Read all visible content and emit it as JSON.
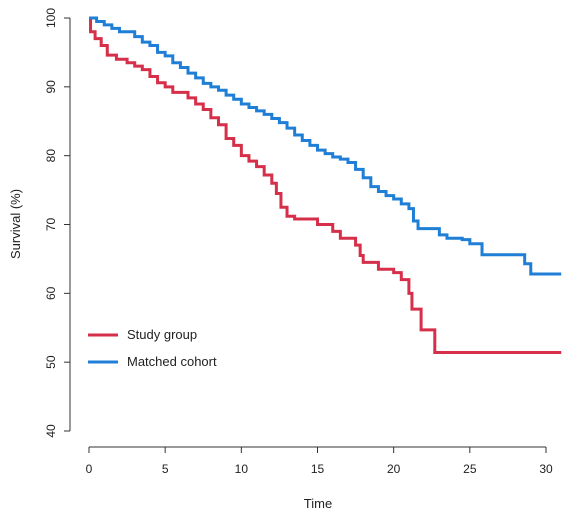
{
  "chart_data": {
    "type": "line",
    "title": "",
    "xlabel": "Time",
    "ylabel": "Survival (%)",
    "xlim": [
      0,
      31
    ],
    "ylim": [
      40,
      100
    ],
    "x_ticks": [
      0,
      5,
      10,
      15,
      20,
      25,
      30
    ],
    "y_ticks": [
      40,
      50,
      60,
      70,
      80,
      90,
      100
    ],
    "legend_position": "bottom-left",
    "grid": false,
    "series": [
      {
        "name": "Study group",
        "color": "#d62f4a",
        "step": true,
        "points": [
          [
            0,
            100
          ],
          [
            0.1,
            98
          ],
          [
            0.4,
            97
          ],
          [
            0.8,
            96
          ],
          [
            1.2,
            94.6
          ],
          [
            1.8,
            94
          ],
          [
            2.5,
            93.5
          ],
          [
            3.0,
            93
          ],
          [
            3.5,
            92.5
          ],
          [
            4.0,
            91.5
          ],
          [
            4.5,
            90.6
          ],
          [
            5.0,
            90
          ],
          [
            5.5,
            89.2
          ],
          [
            6.5,
            88.4
          ],
          [
            7.0,
            87.5
          ],
          [
            7.5,
            86.7
          ],
          [
            8.0,
            85.5
          ],
          [
            8.5,
            84.5
          ],
          [
            9.0,
            82.5
          ],
          [
            9.5,
            81.5
          ],
          [
            10.0,
            80
          ],
          [
            10.5,
            79.2
          ],
          [
            11.0,
            78.4
          ],
          [
            11.5,
            77.2
          ],
          [
            12.0,
            76
          ],
          [
            12.3,
            74.5
          ],
          [
            12.6,
            72.5
          ],
          [
            13.0,
            71.2
          ],
          [
            13.5,
            70.8
          ],
          [
            15.0,
            70
          ],
          [
            16.0,
            69
          ],
          [
            16.5,
            68
          ],
          [
            17.5,
            67
          ],
          [
            17.8,
            65.5
          ],
          [
            18.0,
            64.5
          ],
          [
            19.0,
            63.5
          ],
          [
            20.0,
            63
          ],
          [
            20.5,
            62
          ],
          [
            21.0,
            60
          ],
          [
            21.2,
            57.7
          ],
          [
            21.8,
            54.7
          ],
          [
            22.7,
            51.4
          ],
          [
            31,
            51.4
          ]
        ]
      },
      {
        "name": "Matched cohort",
        "color": "#1f7fd6",
        "step": true,
        "points": [
          [
            0,
            100
          ],
          [
            0.5,
            99.5
          ],
          [
            1.0,
            99
          ],
          [
            1.5,
            98.5
          ],
          [
            2.0,
            98
          ],
          [
            3.0,
            97.3
          ],
          [
            3.5,
            96.5
          ],
          [
            4.0,
            96
          ],
          [
            4.5,
            95
          ],
          [
            5.0,
            94.5
          ],
          [
            5.5,
            93.5
          ],
          [
            6.0,
            92.8
          ],
          [
            6.5,
            92
          ],
          [
            7.0,
            91.3
          ],
          [
            7.5,
            90.5
          ],
          [
            8.0,
            90
          ],
          [
            8.5,
            89.5
          ],
          [
            9.0,
            88.8
          ],
          [
            9.5,
            88.2
          ],
          [
            10.0,
            87.5
          ],
          [
            10.5,
            87
          ],
          [
            11.0,
            86.5
          ],
          [
            11.5,
            86
          ],
          [
            12.0,
            85.4
          ],
          [
            12.5,
            84.8
          ],
          [
            13.0,
            84
          ],
          [
            13.5,
            83
          ],
          [
            14.0,
            82.2
          ],
          [
            14.5,
            81.5
          ],
          [
            15.0,
            80.8
          ],
          [
            15.5,
            80.3
          ],
          [
            16.0,
            79.8
          ],
          [
            16.5,
            79.5
          ],
          [
            17.0,
            79
          ],
          [
            17.5,
            78
          ],
          [
            18.0,
            76.8
          ],
          [
            18.5,
            75.5
          ],
          [
            19.0,
            74.8
          ],
          [
            19.5,
            74.2
          ],
          [
            20.0,
            73.7
          ],
          [
            20.5,
            73
          ],
          [
            21.0,
            72.3
          ],
          [
            21.3,
            70.5
          ],
          [
            21.6,
            69.4
          ],
          [
            23.0,
            68.5
          ],
          [
            23.5,
            68
          ],
          [
            24.5,
            67.8
          ],
          [
            25.0,
            67.2
          ],
          [
            25.8,
            65.6
          ],
          [
            28.6,
            64.3
          ],
          [
            29.0,
            62.8
          ],
          [
            31,
            62.8
          ]
        ]
      }
    ]
  }
}
